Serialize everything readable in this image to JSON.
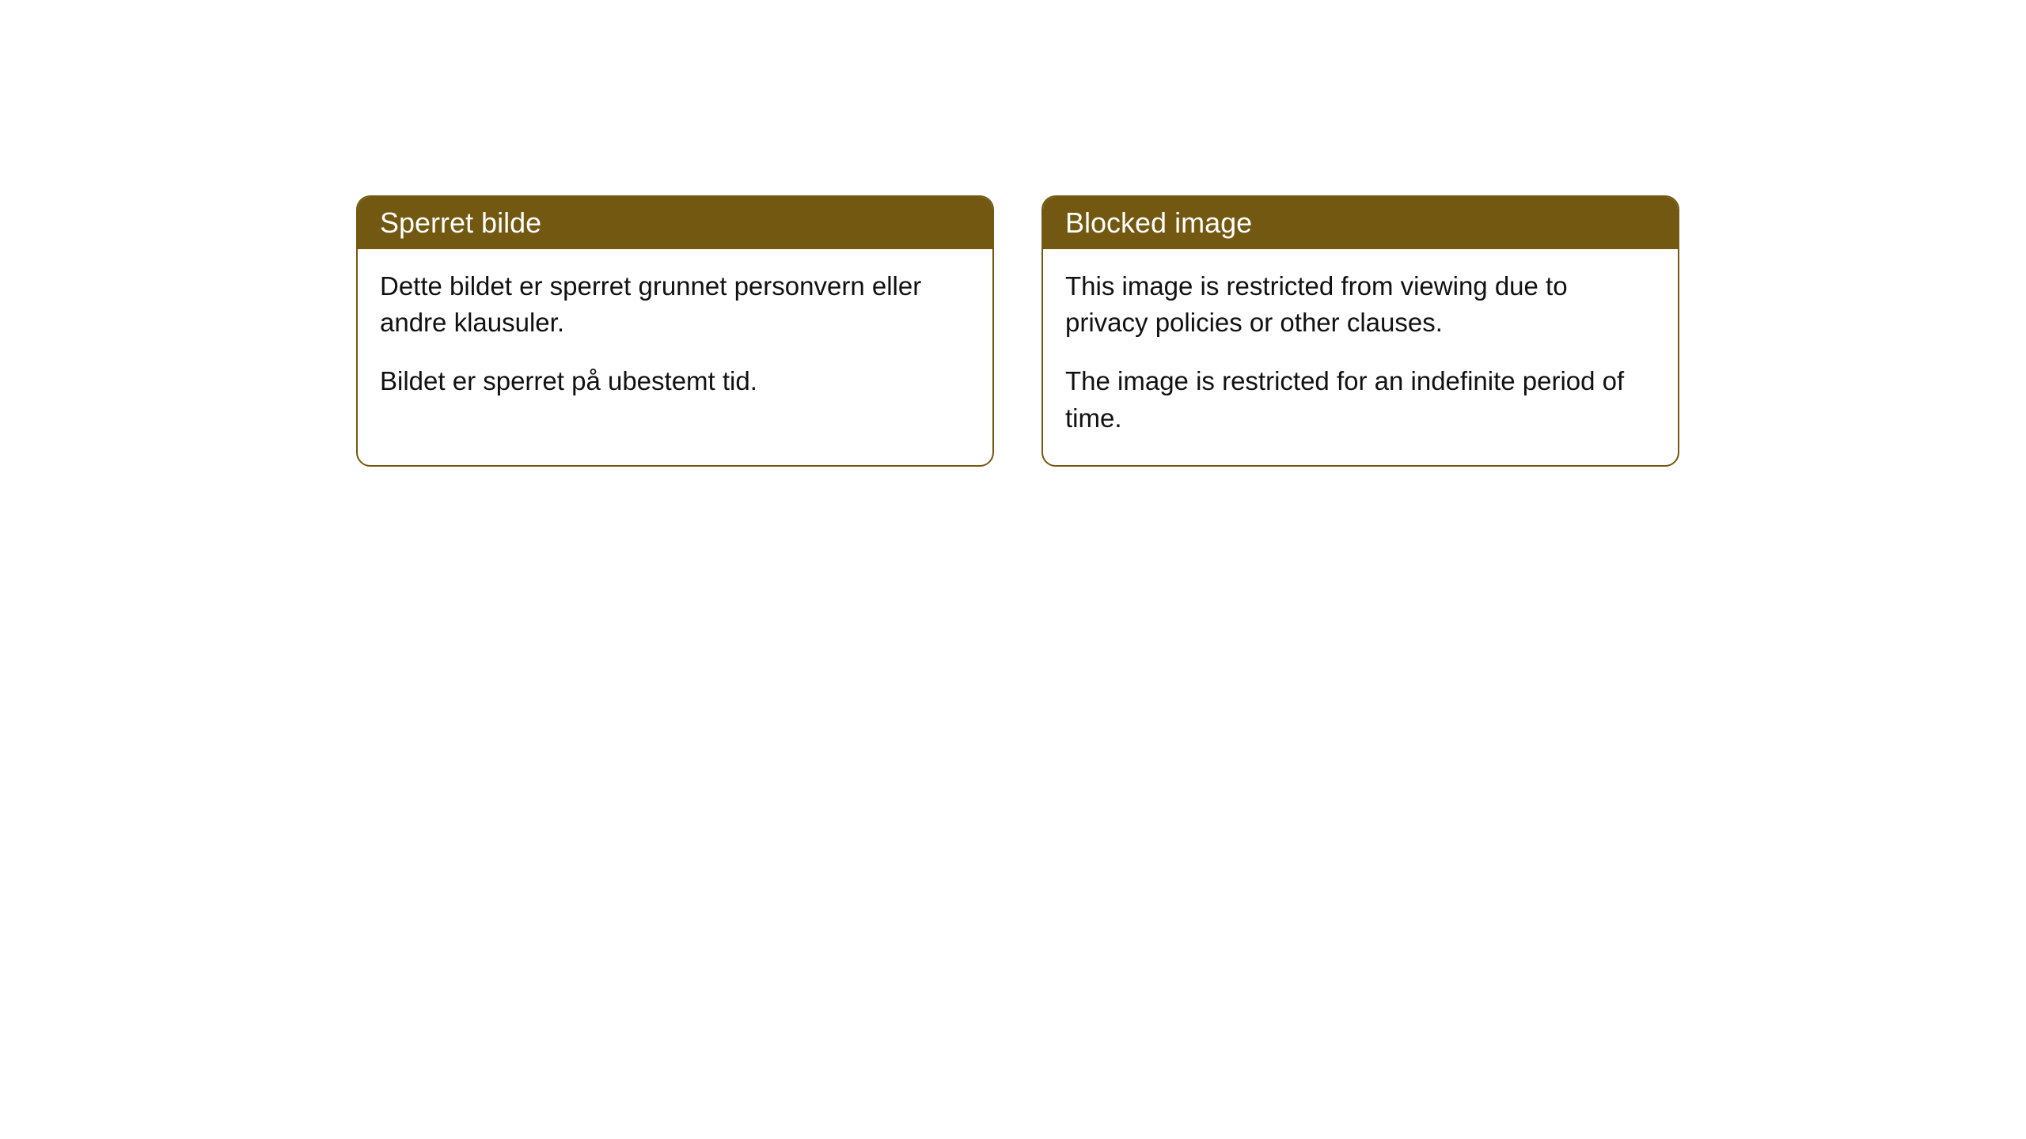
{
  "cards": {
    "left": {
      "title": "Sperret bilde",
      "paragraph1": "Dette bildet er sperret grunnet personvern eller andre klausuler.",
      "paragraph2": "Bildet er sperret på ubestemt tid."
    },
    "right": {
      "title": "Blocked image",
      "paragraph1": "This image is restricted from viewing due to privacy policies or other clauses.",
      "paragraph2": "The image is restricted for an indefinite period of time."
    }
  },
  "styling": {
    "header_bg_color": "#725810",
    "header_text_color": "#ffffff",
    "border_color": "#725810",
    "body_bg_color": "#ffffff",
    "body_text_color": "#111111",
    "border_radius": 18,
    "header_fontsize": 36,
    "body_fontsize": 33
  }
}
